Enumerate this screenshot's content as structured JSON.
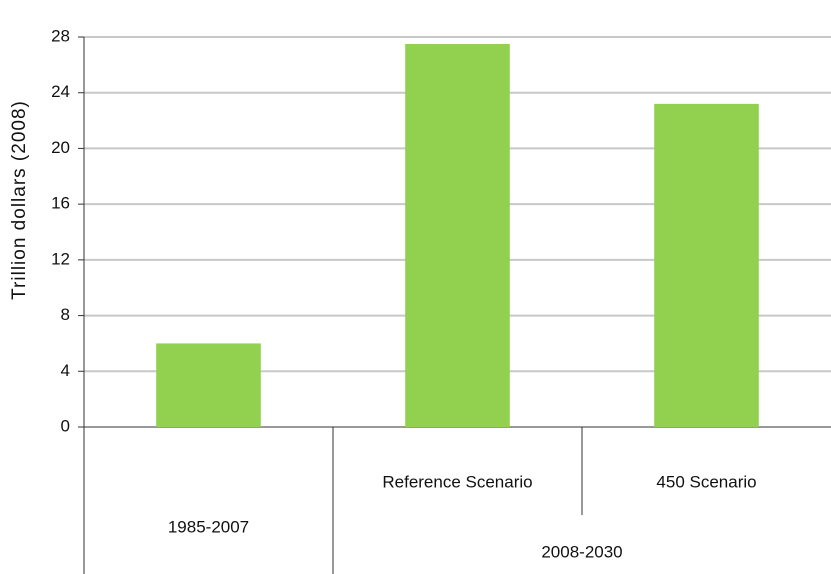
{
  "chart_data": {
    "type": "bar",
    "ylabel": "Trillion dollars (2008)",
    "groups": [
      {
        "name": "1985-2007",
        "categories": [
          null
        ],
        "values": [
          6
        ]
      },
      {
        "name": "2008-2030",
        "categories": [
          "Reference Scenario",
          "450 Scenario"
        ],
        "values": [
          27.5,
          23.2
        ]
      }
    ],
    "color": "#92d050",
    "ylim": [
      0,
      28
    ],
    "yticks": [
      0,
      4,
      8,
      12,
      16,
      20,
      24,
      28
    ],
    "grid": true
  }
}
